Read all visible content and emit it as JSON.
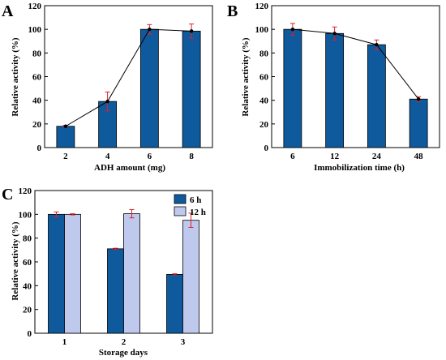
{
  "chart_data": [
    {
      "panel": "A",
      "type": "bar",
      "xlabel": "ADH amount  (mg)",
      "ylabel": "Relative activity (%)",
      "ylim": [
        0,
        120
      ],
      "yticks": [
        "0",
        "20",
        "40",
        "60",
        "80",
        "100",
        "120"
      ],
      "categories": [
        "2",
        "4",
        "6",
        "8"
      ],
      "series": [
        {
          "values": [
            18,
            39,
            100,
            98.5
          ],
          "errors": [
            0.8,
            8,
            4,
            6
          ],
          "color": "#0f5a9c"
        }
      ],
      "line_overlay": true,
      "grid": false
    },
    {
      "panel": "B",
      "type": "bar",
      "xlabel": "Immobilization time (h)",
      "ylabel": "Relative activity (%)",
      "ylim": [
        0,
        120
      ],
      "yticks": [
        "0",
        "20",
        "40",
        "60",
        "80",
        "100",
        "120"
      ],
      "categories": [
        "6",
        "12",
        "24",
        "48"
      ],
      "series": [
        {
          "values": [
            100,
            96.5,
            87,
            41
          ],
          "errors": [
            5,
            5.5,
            4,
            2
          ],
          "color": "#0f5a9c"
        }
      ],
      "line_overlay": true,
      "grid": false
    },
    {
      "panel": "C",
      "type": "bar",
      "xlabel": "Storage days",
      "ylabel": "Relative activity (%)",
      "ylim": [
        0,
        120
      ],
      "yticks": [
        "0",
        "20",
        "40",
        "60",
        "80",
        "100",
        "120"
      ],
      "categories": [
        "1",
        "2",
        "3"
      ],
      "series": [
        {
          "name": "6 h",
          "values": [
            100,
            71,
            49.5
          ],
          "errors": [
            2,
            0.5,
            0.5
          ],
          "color": "#0f5a9c"
        },
        {
          "name": "12 h",
          "values": [
            100,
            100.5,
            95
          ],
          "errors": [
            0.5,
            3.5,
            6
          ],
          "color": "#bfc9ee"
        }
      ],
      "legend": "top-right",
      "grid": false
    }
  ]
}
